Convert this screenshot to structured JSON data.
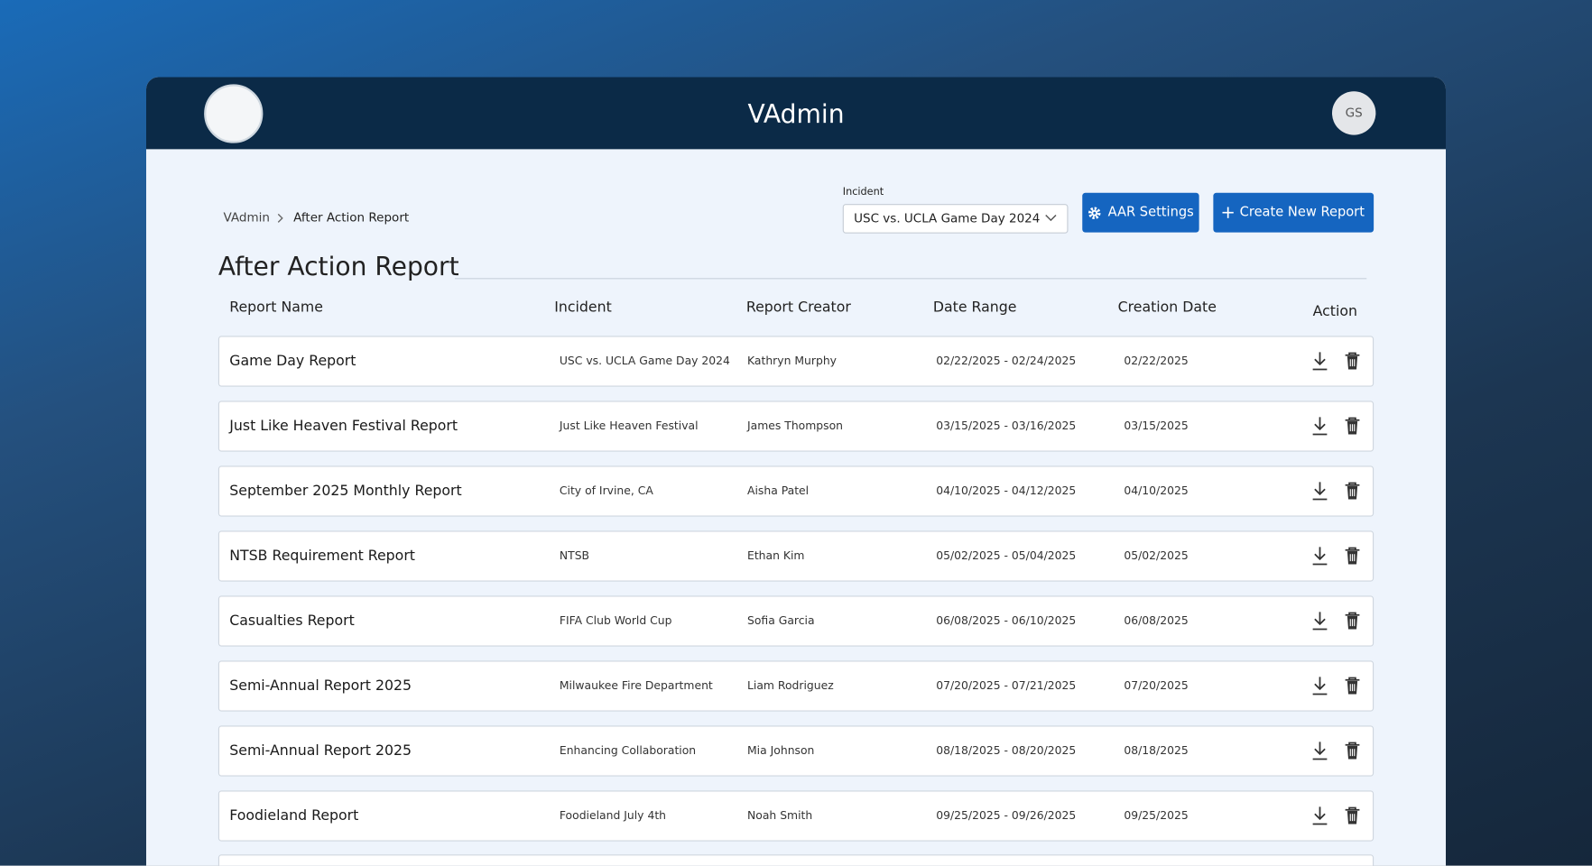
{
  "header": {
    "title": "VAdmin",
    "avatar": "GS"
  },
  "breadcrumb": [
    "VAdmin",
    "After Action Report"
  ],
  "incident_filter": {
    "label": "Incident",
    "value": "USC vs. UCLA Game Day 2024"
  },
  "buttons": {
    "settings": "AAR Settings",
    "create": "Create New Report"
  },
  "page_title": "After Action Report",
  "table": {
    "columns": [
      "Report Name",
      "Incident",
      "Report Creator",
      "Date Range",
      "Creation Date",
      "Action"
    ],
    "rows": [
      [
        "Game Day Report",
        "USC vs. UCLA Game Day 2024",
        "Kathryn Murphy",
        "02/22/2025 - 02/24/2025",
        "02/22/2025"
      ],
      [
        "Just Like Heaven Festival Report",
        "Just Like Heaven Festival",
        "James Thompson",
        "03/15/2025 - 03/16/2025",
        "03/15/2025"
      ],
      [
        "September 2025 Monthly Report",
        "City of Irvine, CA",
        "Aisha Patel",
        "04/10/2025 - 04/12/2025",
        "04/10/2025"
      ],
      [
        "NTSB Requirement Report",
        "NTSB",
        "Ethan Kim",
        "05/02/2025 - 05/04/2025",
        "05/02/2025"
      ],
      [
        "Casualties Report",
        "FIFA Club World Cup",
        "Sofia Garcia",
        "06/08/2025 - 06/10/2025",
        "06/08/2025"
      ],
      [
        "Semi-Annual Report 2025",
        "Milwaukee Fire Department",
        "Liam Rodriguez",
        "07/20/2025 - 07/21/2025",
        "07/20/2025"
      ],
      [
        "Semi-Annual Report 2025",
        "Enhancing Collaboration",
        "Mia Johnson",
        "08/18/2025 - 08/20/2025",
        "08/18/2025"
      ],
      [
        "Foodieland Report",
        "Foodieland July 4th",
        "Noah Smith",
        "09/25/2025 - 09/26/2025",
        "09/25/2025"
      ]
    ]
  }
}
